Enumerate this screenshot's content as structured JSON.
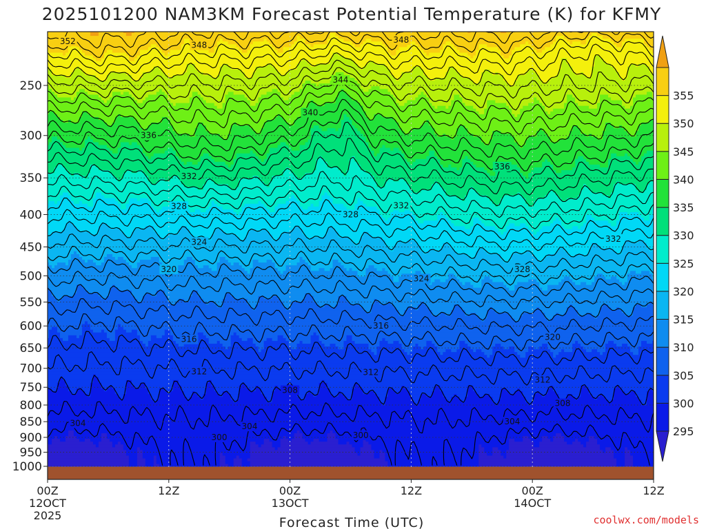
{
  "chart_data": {
    "type": "heatmap",
    "title": "2025101200 NAM3KM Forecast Potential Temperature (K) for KFMY",
    "xlabel": "Forecast Time (UTC)",
    "ylabel": "",
    "x_ticks": [
      {
        "hour": 0,
        "lines": [
          "00Z",
          "12OCT",
          "2025"
        ]
      },
      {
        "hour": 12,
        "lines": [
          "12Z"
        ]
      },
      {
        "hour": 24,
        "lines": [
          "00Z",
          "13OCT"
        ]
      },
      {
        "hour": 36,
        "lines": [
          "12Z"
        ]
      },
      {
        "hour": 48,
        "lines": [
          "00Z",
          "14OCT"
        ]
      },
      {
        "hour": 60,
        "lines": [
          "12Z"
        ]
      }
    ],
    "xlim": [
      0,
      60
    ],
    "y_ticks": [
      250,
      300,
      350,
      400,
      450,
      500,
      550,
      600,
      650,
      700,
      750,
      800,
      850,
      900,
      950,
      1000
    ],
    "ylim_hpa": [
      200,
      1000
    ],
    "colorbar": {
      "levels": [
        290,
        295,
        300,
        305,
        310,
        315,
        320,
        325,
        330,
        335,
        340,
        345,
        350,
        355,
        360
      ],
      "labels": [
        295,
        300,
        305,
        310,
        315,
        320,
        325,
        330,
        335,
        340,
        345,
        350,
        355
      ],
      "colors": [
        "#2a1fd0",
        "#0a1ae8",
        "#0a3bef",
        "#0f62ee",
        "#0f8cf0",
        "#0ab6f2",
        "#00d8f6",
        "#00eccc",
        "#00e07a",
        "#22e23a",
        "#6ef016",
        "#b8f00c",
        "#f4f00c",
        "#f8cf12",
        "#f0a014"
      ]
    },
    "isentropes": [
      {
        "value": 300,
        "hour": 17,
        "p": 900
      },
      {
        "value": 300,
        "hour": 31,
        "p": 893
      },
      {
        "value": 304,
        "hour": 3,
        "p": 855
      },
      {
        "value": 304,
        "hour": 20,
        "p": 865
      },
      {
        "value": 304,
        "hour": 46,
        "p": 850
      },
      {
        "value": 308,
        "hour": 24,
        "p": 758
      },
      {
        "value": 308,
        "hour": 51,
        "p": 795
      },
      {
        "value": 312,
        "hour": 15,
        "p": 708
      },
      {
        "value": 312,
        "hour": 32,
        "p": 710
      },
      {
        "value": 312,
        "hour": 49,
        "p": 730
      },
      {
        "value": 316,
        "hour": 14,
        "p": 630
      },
      {
        "value": 316,
        "hour": 33,
        "p": 600
      },
      {
        "value": 320,
        "hour": 12,
        "p": 488
      },
      {
        "value": 320,
        "hour": 50,
        "p": 625
      },
      {
        "value": 324,
        "hour": 15,
        "p": 442
      },
      {
        "value": 324,
        "hour": 37,
        "p": 505
      },
      {
        "value": 328,
        "hour": 13,
        "p": 388
      },
      {
        "value": 328,
        "hour": 30,
        "p": 400
      },
      {
        "value": 328,
        "hour": 47,
        "p": 488
      },
      {
        "value": 332,
        "hour": 14,
        "p": 348
      },
      {
        "value": 332,
        "hour": 35,
        "p": 387
      },
      {
        "value": 332,
        "hour": 56,
        "p": 437
      },
      {
        "value": 336,
        "hour": 10,
        "p": 300
      },
      {
        "value": 336,
        "hour": 45,
        "p": 336
      },
      {
        "value": 340,
        "hour": 26,
        "p": 276
      },
      {
        "value": 344,
        "hour": 29,
        "p": 245
      },
      {
        "value": 348,
        "hour": 15,
        "p": 216
      },
      {
        "value": 348,
        "hour": 35,
        "p": 212
      },
      {
        "value": 352,
        "hour": 2,
        "p": 213
      }
    ]
  },
  "credit": "coolwx.com/models"
}
